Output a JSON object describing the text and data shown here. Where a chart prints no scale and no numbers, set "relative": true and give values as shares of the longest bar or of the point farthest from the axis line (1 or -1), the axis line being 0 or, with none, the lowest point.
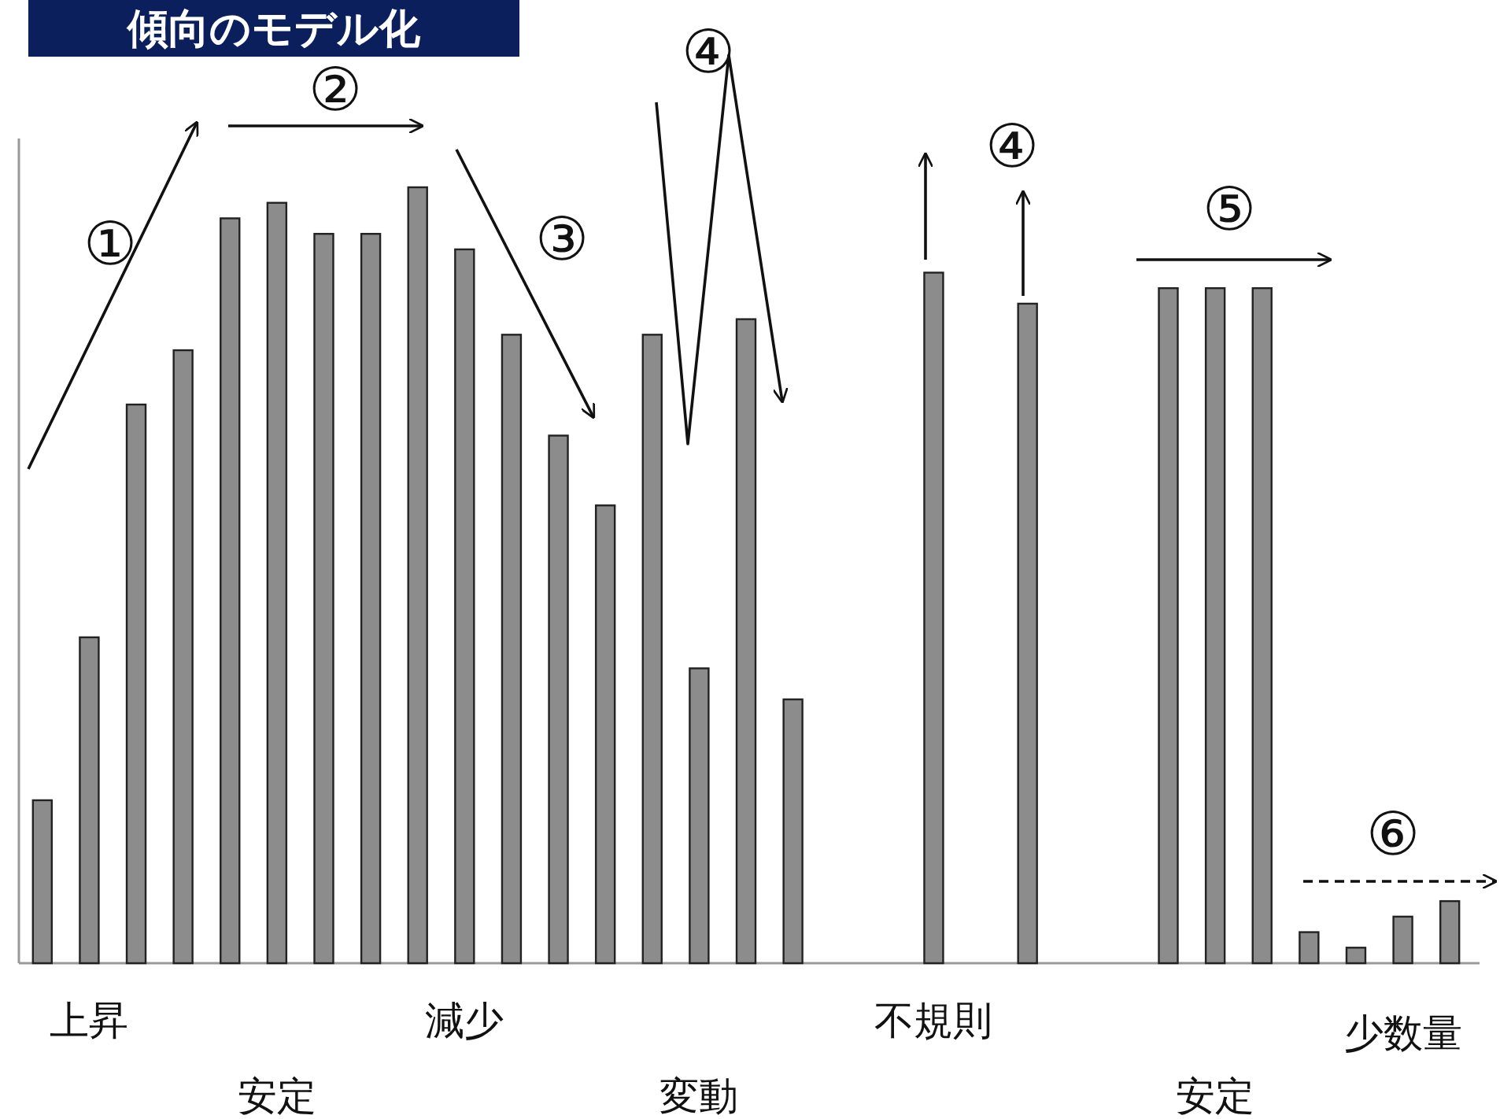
{
  "chart_data": {
    "type": "bar",
    "title": "傾向のモデル化",
    "relative": true,
    "color": "#8c8c8c",
    "categories": [
      null,
      "上昇",
      null,
      null,
      null,
      "安定",
      null,
      null,
      null,
      "減少",
      null,
      null,
      null,
      null,
      "変動",
      null,
      null,
      null,
      null,
      "不規則",
      null,
      null,
      null,
      null,
      null,
      "安定",
      null,
      null,
      null,
      "少数量",
      null
    ],
    "values": [
      0.21,
      0.42,
      0.72,
      0.79,
      0.96,
      0.98,
      0.94,
      0.94,
      1,
      0.92,
      0.81,
      0.68,
      0.59,
      0.81,
      0.38,
      0.83,
      0.34,
      null,
      null,
      0.89,
      null,
      0.85,
      null,
      null,
      0.87,
      0.87,
      0.87,
      0.04,
      0.02,
      0.06,
      0.08
    ],
    "annotations": [
      "①",
      "②",
      "③",
      "④",
      "④",
      "⑤",
      "⑥"
    ]
  }
}
